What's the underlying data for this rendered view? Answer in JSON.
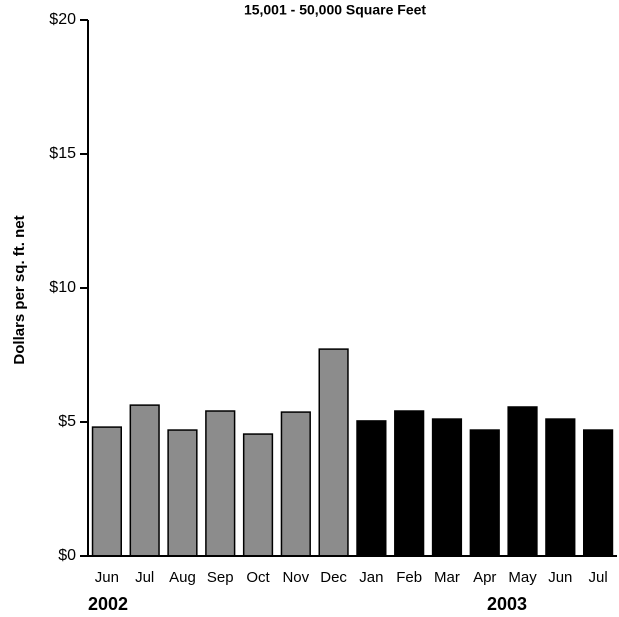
{
  "chart_data": {
    "type": "bar",
    "title": "15,001 - 50,000 Square Feet",
    "y_label": "Dollars per sq. ft. net",
    "categories": [
      "Jun",
      "Jul",
      "Aug",
      "Sep",
      "Oct",
      "Nov",
      "Dec",
      "Jan",
      "Feb",
      "Mar",
      "Apr",
      "May",
      "Jun",
      "Jul"
    ],
    "values": [
      4.81,
      5.63,
      4.7,
      5.41,
      4.55,
      5.37,
      7.72,
      5.04,
      5.41,
      5.11,
      4.7,
      5.56,
      5.11,
      4.7
    ],
    "colors": [
      "#8c8c8c",
      "#8c8c8c",
      "#8c8c8c",
      "#8c8c8c",
      "#8c8c8c",
      "#8c8c8c",
      "#8c8c8c",
      "#000000",
      "#000000",
      "#000000",
      "#000000",
      "#000000",
      "#000000",
      "#000000"
    ],
    "ylim": [
      0,
      20
    ],
    "yticks": [
      {
        "value": 0,
        "label": "$0"
      },
      {
        "value": 5,
        "label": "$5"
      },
      {
        "value": 10,
        "label": "$10"
      },
      {
        "value": 15,
        "label": "$15"
      },
      {
        "value": 20,
        "label": "$20"
      }
    ],
    "annotations": [
      "2002",
      "2003"
    ]
  }
}
